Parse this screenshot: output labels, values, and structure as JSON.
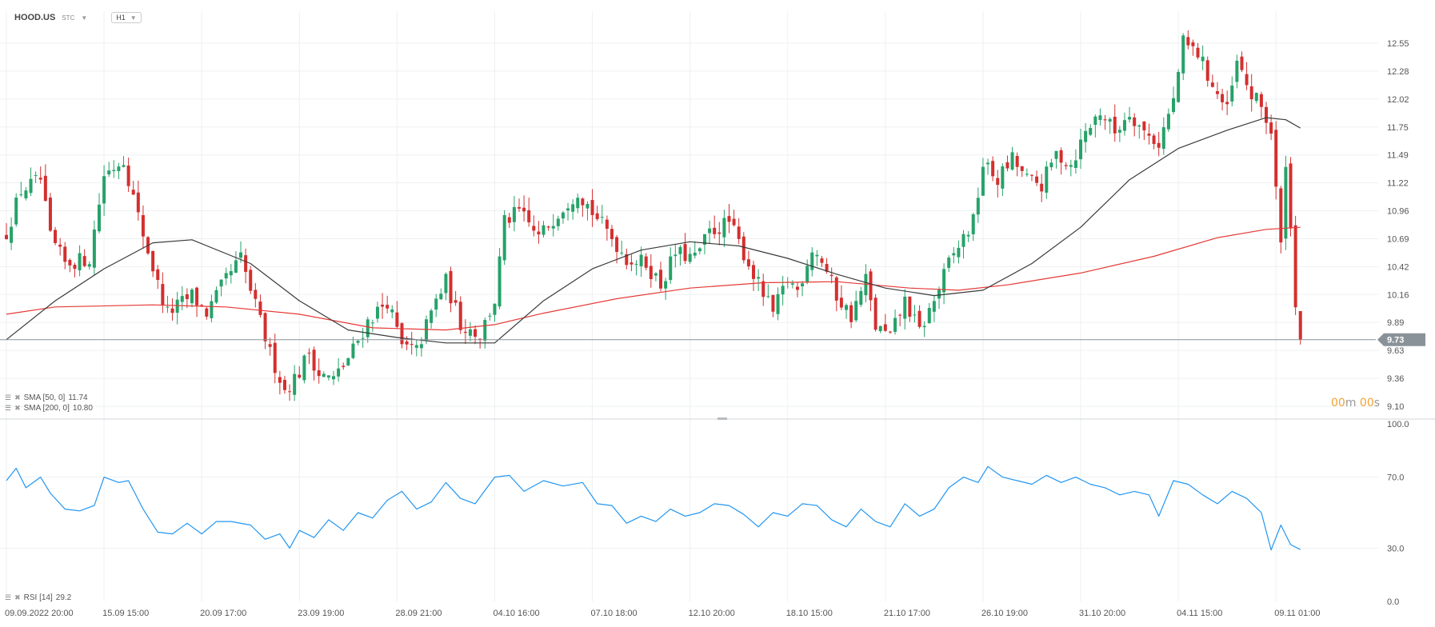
{
  "header": {
    "symbol": "HOOD.US",
    "instrument_type": "STC",
    "timeframe": "H1"
  },
  "indicators": {
    "sma50": {
      "label": "SMA [50, 0]",
      "value": "11.74",
      "color": "#3a3a3a"
    },
    "sma200": {
      "label": "SMA [200, 0]",
      "value": "10.80",
      "color": "#e53935"
    },
    "rsi": {
      "label": "RSI [14]",
      "value": "29.2",
      "color": "#2196f3"
    }
  },
  "last_price": {
    "value": "9.73",
    "badge_color": "#8a9299"
  },
  "countdown": {
    "minutes": "00",
    "m": "m",
    "seconds": "00",
    "s": "s"
  },
  "colors": {
    "up": "#26a269",
    "down": "#d32f2f",
    "grid": "#eef0f2"
  },
  "chart_data": [
    {
      "type": "candlestick",
      "title": "HOOD.US H1",
      "y_ticks": [
        9.1,
        9.36,
        9.63,
        9.89,
        10.16,
        10.42,
        10.69,
        10.96,
        11.22,
        11.49,
        11.75,
        12.02,
        12.28,
        12.55
      ],
      "y_tick_labels": [
        "9.10",
        "9.36",
        "9.63",
        "9.89",
        "10.16",
        "10.42",
        "10.69",
        "10.96",
        "11.22",
        "11.49",
        "11.75",
        "12.02",
        "12.28",
        "12.55"
      ],
      "ylim": [
        9.1,
        12.72
      ],
      "x_labels": [
        "09.09.2022  20:00",
        "15.09  15:00",
        "20.09  17:00",
        "23.09  19:00",
        "28.09  21:00",
        "04.10  16:00",
        "07.10  18:00",
        "12.10  20:00",
        "18.10  15:00",
        "21.10  17:00",
        "26.10  19:00",
        "31.10  20:00",
        "04.11  15:00",
        "09.11  01:00"
      ],
      "x_label_bars": [
        0,
        20,
        40,
        60,
        80,
        100,
        120,
        140,
        160,
        180,
        200,
        220,
        240,
        260
      ],
      "close_path": [
        {
          "bar": 0,
          "close": 10.75
        },
        {
          "bar": 3,
          "close": 11.15
        },
        {
          "bar": 7,
          "close": 11.25
        },
        {
          "bar": 9,
          "close": 10.7
        },
        {
          "bar": 12,
          "close": 10.45
        },
        {
          "bar": 17,
          "close": 10.5
        },
        {
          "bar": 20,
          "close": 11.3
        },
        {
          "bar": 24,
          "close": 11.45
        },
        {
          "bar": 27,
          "close": 10.9
        },
        {
          "bar": 31,
          "close": 10.25
        },
        {
          "bar": 33,
          "close": 9.98
        },
        {
          "bar": 38,
          "close": 10.15
        },
        {
          "bar": 41,
          "close": 9.98
        },
        {
          "bar": 45,
          "close": 10.3
        },
        {
          "bar": 48,
          "close": 10.5
        },
        {
          "bar": 51,
          "close": 10.05
        },
        {
          "bar": 54,
          "close": 9.6
        },
        {
          "bar": 57,
          "close": 9.25
        },
        {
          "bar": 60,
          "close": 9.42
        },
        {
          "bar": 62,
          "close": 9.62
        },
        {
          "bar": 64,
          "close": 9.4
        },
        {
          "bar": 67,
          "close": 9.35
        },
        {
          "bar": 70,
          "close": 9.55
        },
        {
          "bar": 74,
          "close": 9.9
        },
        {
          "bar": 78,
          "close": 10.1
        },
        {
          "bar": 81,
          "close": 9.66
        },
        {
          "bar": 84,
          "close": 9.62
        },
        {
          "bar": 88,
          "close": 10.1
        },
        {
          "bar": 90,
          "close": 10.28
        },
        {
          "bar": 93,
          "close": 9.88
        },
        {
          "bar": 97,
          "close": 9.78
        },
        {
          "bar": 100,
          "close": 10.1
        },
        {
          "bar": 102,
          "close": 10.85
        },
        {
          "bar": 105,
          "close": 10.95
        },
        {
          "bar": 109,
          "close": 10.7
        },
        {
          "bar": 113,
          "close": 10.95
        },
        {
          "bar": 117,
          "close": 11.15
        },
        {
          "bar": 120,
          "close": 10.95
        },
        {
          "bar": 124,
          "close": 10.7
        },
        {
          "bar": 127,
          "close": 10.5
        },
        {
          "bar": 131,
          "close": 10.45
        },
        {
          "bar": 134,
          "close": 10.25
        },
        {
          "bar": 137,
          "close": 10.55
        },
        {
          "bar": 141,
          "close": 10.5
        },
        {
          "bar": 144,
          "close": 10.75
        },
        {
          "bar": 148,
          "close": 10.85
        },
        {
          "bar": 151,
          "close": 10.55
        },
        {
          "bar": 154,
          "close": 10.25
        },
        {
          "bar": 157,
          "close": 9.98
        },
        {
          "bar": 160,
          "close": 10.3
        },
        {
          "bar": 162,
          "close": 10.2
        },
        {
          "bar": 165,
          "close": 10.6
        },
        {
          "bar": 167,
          "close": 10.48
        },
        {
          "bar": 170,
          "close": 10.15
        },
        {
          "bar": 173,
          "close": 9.95
        },
        {
          "bar": 176,
          "close": 10.3
        },
        {
          "bar": 178,
          "close": 9.85
        },
        {
          "bar": 181,
          "close": 9.75
        },
        {
          "bar": 184,
          "close": 10.1
        },
        {
          "bar": 187,
          "close": 9.8
        },
        {
          "bar": 190,
          "close": 10.1
        },
        {
          "bar": 193,
          "close": 10.45
        },
        {
          "bar": 196,
          "close": 10.7
        },
        {
          "bar": 198,
          "close": 10.85
        },
        {
          "bar": 200,
          "close": 11.4
        },
        {
          "bar": 203,
          "close": 11.25
        },
        {
          "bar": 206,
          "close": 11.45
        },
        {
          "bar": 209,
          "close": 11.25
        },
        {
          "bar": 212,
          "close": 11.2
        },
        {
          "bar": 215,
          "close": 11.5
        },
        {
          "bar": 218,
          "close": 11.4
        },
        {
          "bar": 221,
          "close": 11.7
        },
        {
          "bar": 224,
          "close": 11.9
        },
        {
          "bar": 227,
          "close": 11.7
        },
        {
          "bar": 230,
          "close": 11.9
        },
        {
          "bar": 233,
          "close": 11.7
        },
        {
          "bar": 236,
          "close": 11.6
        },
        {
          "bar": 239,
          "close": 12.0
        },
        {
          "bar": 241,
          "close": 12.55
        },
        {
          "bar": 244,
          "close": 12.45
        },
        {
          "bar": 247,
          "close": 12.15
        },
        {
          "bar": 250,
          "close": 11.9
        },
        {
          "bar": 252,
          "close": 12.35
        },
        {
          "bar": 255,
          "close": 12.05
        },
        {
          "bar": 257,
          "close": 11.95
        },
        {
          "bar": 259,
          "close": 11.7
        },
        {
          "bar": 261,
          "close": 10.6
        },
        {
          "bar": 262,
          "close": 11.45
        },
        {
          "bar": 264,
          "close": 10.1
        },
        {
          "bar": 265,
          "close": 9.73
        }
      ],
      "sma50": [
        {
          "bar": 0,
          "value": 9.73
        },
        {
          "bar": 10,
          "value": 10.1
        },
        {
          "bar": 20,
          "value": 10.4
        },
        {
          "bar": 30,
          "value": 10.65
        },
        {
          "bar": 38,
          "value": 10.68
        },
        {
          "bar": 50,
          "value": 10.45
        },
        {
          "bar": 60,
          "value": 10.1
        },
        {
          "bar": 70,
          "value": 9.82
        },
        {
          "bar": 80,
          "value": 9.75
        },
        {
          "bar": 90,
          "value": 9.7
        },
        {
          "bar": 100,
          "value": 9.7
        },
        {
          "bar": 110,
          "value": 10.1
        },
        {
          "bar": 120,
          "value": 10.4
        },
        {
          "bar": 130,
          "value": 10.58
        },
        {
          "bar": 140,
          "value": 10.66
        },
        {
          "bar": 150,
          "value": 10.62
        },
        {
          "bar": 160,
          "value": 10.5
        },
        {
          "bar": 170,
          "value": 10.35
        },
        {
          "bar": 180,
          "value": 10.22
        },
        {
          "bar": 190,
          "value": 10.15
        },
        {
          "bar": 200,
          "value": 10.2
        },
        {
          "bar": 210,
          "value": 10.45
        },
        {
          "bar": 220,
          "value": 10.8
        },
        {
          "bar": 230,
          "value": 11.25
        },
        {
          "bar": 240,
          "value": 11.55
        },
        {
          "bar": 250,
          "value": 11.72
        },
        {
          "bar": 258,
          "value": 11.84
        },
        {
          "bar": 262,
          "value": 11.82
        },
        {
          "bar": 265,
          "value": 11.74
        }
      ],
      "sma200": [
        {
          "bar": 0,
          "value": 9.97
        },
        {
          "bar": 10,
          "value": 10.04
        },
        {
          "bar": 30,
          "value": 10.06
        },
        {
          "bar": 45,
          "value": 10.04
        },
        {
          "bar": 60,
          "value": 9.97
        },
        {
          "bar": 75,
          "value": 9.84
        },
        {
          "bar": 90,
          "value": 9.82
        },
        {
          "bar": 100,
          "value": 9.87
        },
        {
          "bar": 110,
          "value": 9.98
        },
        {
          "bar": 125,
          "value": 10.12
        },
        {
          "bar": 140,
          "value": 10.22
        },
        {
          "bar": 155,
          "value": 10.27
        },
        {
          "bar": 170,
          "value": 10.28
        },
        {
          "bar": 185,
          "value": 10.22
        },
        {
          "bar": 195,
          "value": 10.2
        },
        {
          "bar": 205,
          "value": 10.25
        },
        {
          "bar": 220,
          "value": 10.36
        },
        {
          "bar": 235,
          "value": 10.52
        },
        {
          "bar": 248,
          "value": 10.7
        },
        {
          "bar": 258,
          "value": 10.78
        },
        {
          "bar": 265,
          "value": 10.8
        }
      ],
      "bars": 266,
      "last_bar_close": 9.73
    },
    {
      "type": "line",
      "title": "RSI [14]",
      "y_ticks": [
        0,
        30,
        70,
        100
      ],
      "y_tick_labels": [
        "0.0",
        "30.0",
        "70.0",
        "100.0"
      ],
      "ylim": [
        0,
        100
      ],
      "series": [
        {
          "name": "RSI [14]",
          "points": [
            {
              "bar": 0,
              "value": 68
            },
            {
              "bar": 2,
              "value": 75
            },
            {
              "bar": 4,
              "value": 64
            },
            {
              "bar": 7,
              "value": 70
            },
            {
              "bar": 9,
              "value": 61
            },
            {
              "bar": 12,
              "value": 52
            },
            {
              "bar": 15,
              "value": 51
            },
            {
              "bar": 18,
              "value": 54
            },
            {
              "bar": 20,
              "value": 70
            },
            {
              "bar": 23,
              "value": 67
            },
            {
              "bar": 25,
              "value": 68
            },
            {
              "bar": 28,
              "value": 52
            },
            {
              "bar": 31,
              "value": 39
            },
            {
              "bar": 34,
              "value": 38
            },
            {
              "bar": 37,
              "value": 44
            },
            {
              "bar": 40,
              "value": 38
            },
            {
              "bar": 43,
              "value": 45
            },
            {
              "bar": 46,
              "value": 45
            },
            {
              "bar": 50,
              "value": 43
            },
            {
              "bar": 53,
              "value": 35
            },
            {
              "bar": 56,
              "value": 38
            },
            {
              "bar": 58,
              "value": 30
            },
            {
              "bar": 60,
              "value": 40
            },
            {
              "bar": 63,
              "value": 36
            },
            {
              "bar": 66,
              "value": 46
            },
            {
              "bar": 69,
              "value": 40
            },
            {
              "bar": 72,
              "value": 50
            },
            {
              "bar": 75,
              "value": 47
            },
            {
              "bar": 78,
              "value": 57
            },
            {
              "bar": 81,
              "value": 62
            },
            {
              "bar": 84,
              "value": 52
            },
            {
              "bar": 87,
              "value": 56
            },
            {
              "bar": 90,
              "value": 67
            },
            {
              "bar": 93,
              "value": 58
            },
            {
              "bar": 96,
              "value": 55
            },
            {
              "bar": 100,
              "value": 70
            },
            {
              "bar": 103,
              "value": 71
            },
            {
              "bar": 106,
              "value": 62
            },
            {
              "bar": 110,
              "value": 68
            },
            {
              "bar": 114,
              "value": 65
            },
            {
              "bar": 118,
              "value": 67
            },
            {
              "bar": 121,
              "value": 55
            },
            {
              "bar": 124,
              "value": 54
            },
            {
              "bar": 127,
              "value": 44
            },
            {
              "bar": 130,
              "value": 48
            },
            {
              "bar": 133,
              "value": 45
            },
            {
              "bar": 136,
              "value": 52
            },
            {
              "bar": 139,
              "value": 48
            },
            {
              "bar": 142,
              "value": 50
            },
            {
              "bar": 145,
              "value": 55
            },
            {
              "bar": 148,
              "value": 54
            },
            {
              "bar": 151,
              "value": 49
            },
            {
              "bar": 154,
              "value": 42
            },
            {
              "bar": 157,
              "value": 50
            },
            {
              "bar": 160,
              "value": 48
            },
            {
              "bar": 163,
              "value": 55
            },
            {
              "bar": 166,
              "value": 54
            },
            {
              "bar": 169,
              "value": 46
            },
            {
              "bar": 172,
              "value": 42
            },
            {
              "bar": 175,
              "value": 52
            },
            {
              "bar": 178,
              "value": 45
            },
            {
              "bar": 181,
              "value": 42
            },
            {
              "bar": 184,
              "value": 55
            },
            {
              "bar": 187,
              "value": 48
            },
            {
              "bar": 190,
              "value": 52
            },
            {
              "bar": 193,
              "value": 64
            },
            {
              "bar": 196,
              "value": 70
            },
            {
              "bar": 199,
              "value": 67
            },
            {
              "bar": 201,
              "value": 76
            },
            {
              "bar": 204,
              "value": 70
            },
            {
              "bar": 207,
              "value": 68
            },
            {
              "bar": 210,
              "value": 66
            },
            {
              "bar": 213,
              "value": 71
            },
            {
              "bar": 216,
              "value": 67
            },
            {
              "bar": 219,
              "value": 70
            },
            {
              "bar": 222,
              "value": 66
            },
            {
              "bar": 225,
              "value": 64
            },
            {
              "bar": 228,
              "value": 60
            },
            {
              "bar": 231,
              "value": 62
            },
            {
              "bar": 234,
              "value": 60
            },
            {
              "bar": 236,
              "value": 48
            },
            {
              "bar": 239,
              "value": 68
            },
            {
              "bar": 242,
              "value": 66
            },
            {
              "bar": 245,
              "value": 60
            },
            {
              "bar": 248,
              "value": 55
            },
            {
              "bar": 251,
              "value": 62
            },
            {
              "bar": 254,
              "value": 58
            },
            {
              "bar": 257,
              "value": 50
            },
            {
              "bar": 259,
              "value": 29
            },
            {
              "bar": 261,
              "value": 43
            },
            {
              "bar": 263,
              "value": 32
            },
            {
              "bar": 265,
              "value": 29.2
            }
          ]
        }
      ]
    }
  ]
}
